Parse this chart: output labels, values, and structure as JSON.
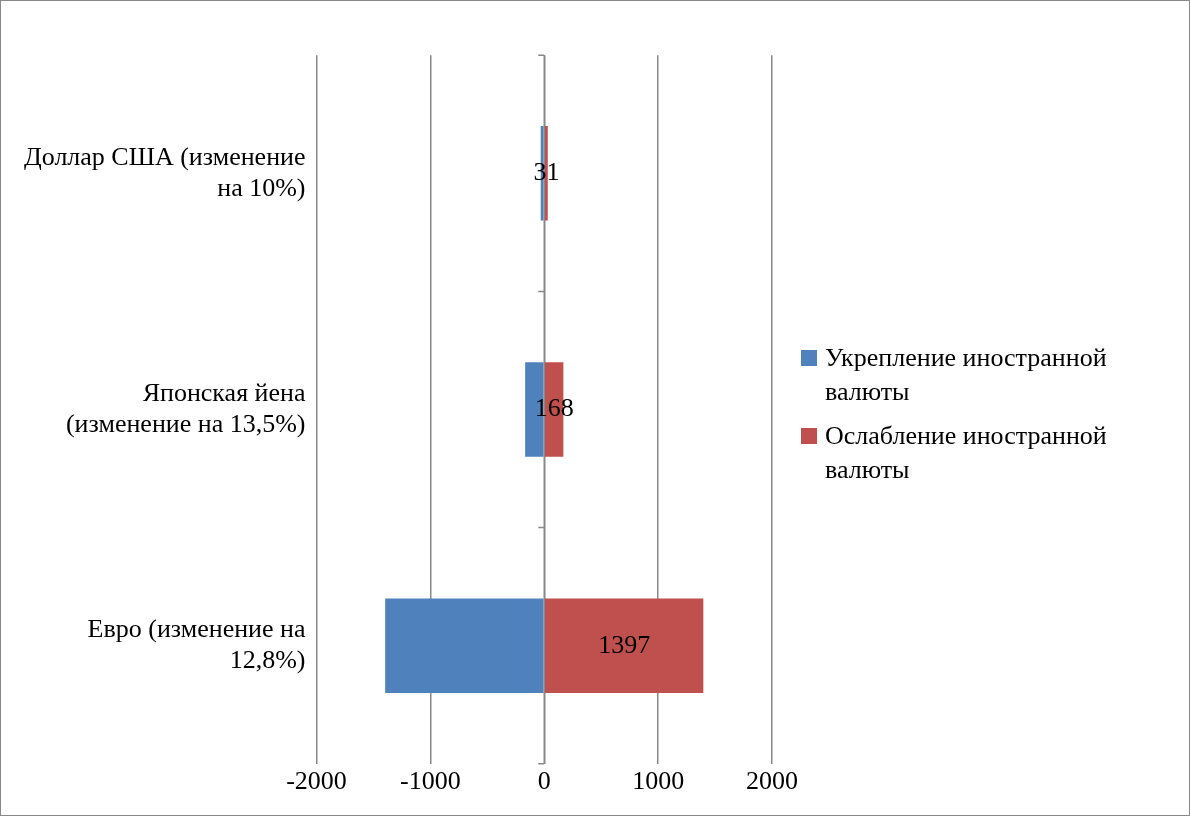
{
  "chart_data": {
    "type": "bar",
    "orientation": "horizontal",
    "stacked": true,
    "categories": [
      "Доллар США (изменение на 10%)",
      "Японская йена (изменение на 13,5%)",
      "Евро (изменение на 12,8%)"
    ],
    "series": [
      {
        "name": "Укрепление иностранной валюты",
        "color": "#4f81bd",
        "values": [
          -31,
          -168,
          -1397
        ]
      },
      {
        "name": "Ослабление иностранной валюты",
        "color": "#c0504d",
        "values": [
          31,
          168,
          1397
        ],
        "value_labels": [
          "31",
          "168",
          "1397"
        ]
      }
    ],
    "xlim": [
      -2000,
      2000
    ],
    "xticks": [
      -2000,
      -1000,
      0,
      1000,
      2000
    ],
    "grid": "x",
    "legend": "right"
  }
}
